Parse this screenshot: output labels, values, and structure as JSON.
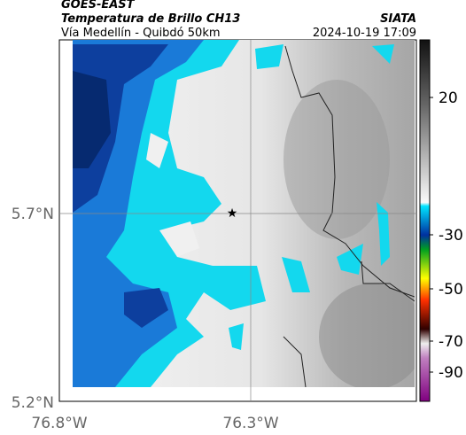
{
  "header": {
    "satellite": "GOES-EAST",
    "product": "Temperatura de Brillo CH13",
    "route": "Vía Medellín - Quibdó 50km",
    "source": "SIATA",
    "datetime": "2024-10-19 17:09"
  },
  "axes": {
    "lat_labels": [
      "5.7°N",
      "5.2°N"
    ],
    "lon_labels": [
      "76.8°W",
      "76.3°W"
    ]
  },
  "colorbar": {
    "ticks": [
      20,
      -30,
      -50,
      -70,
      -90
    ]
  }
}
